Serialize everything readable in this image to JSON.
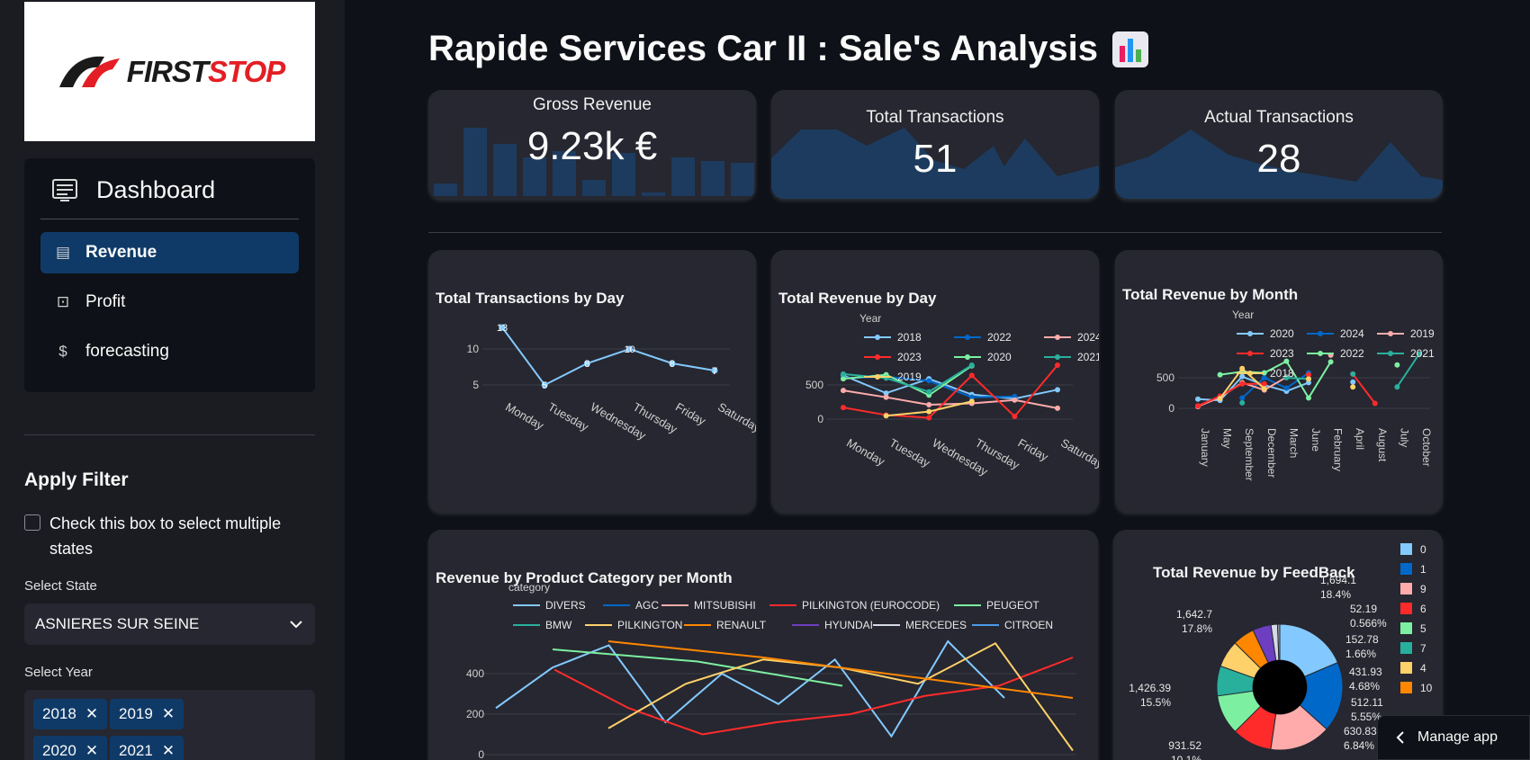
{
  "app": {
    "title": "Rapide Services Car II : Sale's Analysis"
  },
  "logo": {
    "text_first": "FIRST",
    "text_stop": "STOP"
  },
  "nav": {
    "title": "Dashboard",
    "items": [
      {
        "label": "Revenue",
        "icon": "receipt-icon",
        "active": true
      },
      {
        "label": "Profit",
        "icon": "wallet-icon",
        "active": false
      },
      {
        "label": "forecasting",
        "icon": "dollar-icon",
        "active": false
      }
    ]
  },
  "filter": {
    "title": "Apply Filter",
    "checkbox_label": "Check this box to select multiple states",
    "state_label": "Select State",
    "state_value": "ASNIERES SUR SEINE",
    "year_label": "Select Year",
    "years": [
      "2018",
      "2019",
      "2020",
      "2021"
    ]
  },
  "kpis": [
    {
      "label": "Gross Revenue",
      "value": "9.23k €",
      "spark": "bar"
    },
    {
      "label": "Total Transactions",
      "value": "51",
      "spark": "area"
    },
    {
      "label": "Actual Transactions",
      "value": "28",
      "spark": "area"
    }
  ],
  "manage_app": "Manage app",
  "colors": {
    "accent": "#0f3a68",
    "card": "#262730",
    "background": "#0e1117"
  },
  "chart_data": [
    {
      "type": "line",
      "title": "Total Transactions by Day",
      "categories": [
        "Monday",
        "Tuesday",
        "Wednesday",
        "Thursday",
        "Friday",
        "Saturday"
      ],
      "values": [
        13,
        5,
        8,
        10,
        8,
        7
      ],
      "yticks": [
        5,
        10
      ],
      "color": "#83c9ff"
    },
    {
      "type": "line",
      "title": "Total Revenue by Day",
      "legend_title": "Year",
      "categories": [
        "Monday",
        "Tuesday",
        "Wednesday",
        "Thursday",
        "Friday",
        "Saturday"
      ],
      "yticks": [
        0,
        500
      ],
      "series": [
        {
          "name": "2018",
          "color": "#83c9ff",
          "values": [
            640,
            380,
            590,
            360,
            300,
            430
          ]
        },
        {
          "name": "2022",
          "color": "#0068c9",
          "values": [
            600,
            620,
            560,
            320,
            330,
            null
          ]
        },
        {
          "name": "2024",
          "color": "#ffabab",
          "values": [
            420,
            320,
            210,
            230,
            280,
            160
          ]
        },
        {
          "name": "2023",
          "color": "#ff2b2b",
          "values": [
            170,
            60,
            20,
            640,
            40,
            790
          ]
        },
        {
          "name": "2020",
          "color": "#7defa1",
          "values": [
            590,
            650,
            350,
            780,
            null,
            null
          ]
        },
        {
          "name": "2021",
          "color": "#29b09d",
          "values": [
            660,
            600,
            400,
            790,
            null,
            null
          ]
        },
        {
          "name": "2019",
          "color": "#ffd16a",
          "values": [
            null,
            50,
            110,
            260,
            null,
            null
          ]
        }
      ]
    },
    {
      "type": "line",
      "title": "Total Revenue by Month",
      "legend_title": "Year",
      "categories": [
        "January",
        "May",
        "September",
        "December",
        "March",
        "June",
        "February",
        "April",
        "August",
        "July",
        "October"
      ],
      "yticks": [
        0,
        500
      ],
      "series": [
        {
          "name": "2020",
          "color": "#83c9ff",
          "values": [
            150,
            130,
            520,
            380,
            280,
            420,
            null,
            430,
            null,
            null,
            null
          ]
        },
        {
          "name": "2024",
          "color": "#0068c9",
          "values": [
            null,
            null,
            170,
            500,
            330,
            580,
            null,
            null,
            null,
            null,
            null
          ]
        },
        {
          "name": "2019",
          "color": "#ffabab",
          "values": [
            30,
            180,
            420,
            300,
            510,
            null,
            870,
            null,
            null,
            null,
            null
          ]
        },
        {
          "name": "2023",
          "color": "#ff2b2b",
          "values": [
            40,
            200,
            400,
            400,
            null,
            550,
            null,
            560,
            80,
            null,
            null
          ]
        },
        {
          "name": "2022",
          "color": "#7defa1",
          "values": [
            null,
            550,
            600,
            580,
            770,
            170,
            760,
            null,
            null,
            710,
            null
          ]
        },
        {
          "name": "2021",
          "color": "#29b09d",
          "values": [
            null,
            null,
            90,
            null,
            500,
            480,
            null,
            560,
            null,
            350,
            890
          ]
        },
        {
          "name": "2018",
          "color": "#ffd16a",
          "values": [
            null,
            160,
            650,
            320,
            null,
            480,
            null,
            350,
            null,
            null,
            null
          ]
        }
      ]
    },
    {
      "type": "line",
      "title": "Revenue by Product Category per Month",
      "legend_title": "category",
      "yticks": [
        0,
        200,
        400
      ],
      "series": [
        {
          "name": "DIVERS",
          "color": "#83c9ff",
          "values": [
            230,
            430,
            540,
            160,
            400,
            250,
            470,
            90,
            560,
            280
          ]
        },
        {
          "name": "AGC",
          "color": "#0068c9",
          "values": []
        },
        {
          "name": "MITSUBISHI",
          "color": "#ffabab",
          "values": []
        },
        {
          "name": "PILKINGTON (EUROCODE)",
          "color": "#ff2b2b",
          "values": [
            420,
            230,
            100,
            160,
            200,
            290,
            340,
            480
          ]
        },
        {
          "name": "PEUGEOT",
          "color": "#7defa1",
          "values": [
            520,
            460,
            340
          ]
        },
        {
          "name": "BMW",
          "color": "#29b09d",
          "values": []
        },
        {
          "name": "PILKINGTON",
          "color": "#ffd16a",
          "values": [
            130,
            350,
            470,
            430,
            350,
            550,
            20
          ]
        },
        {
          "name": "RENAULT",
          "color": "#ff8700",
          "values": [
            560,
            480,
            380,
            280
          ]
        },
        {
          "name": "HYUNDAI",
          "color": "#6d3fc0",
          "values": []
        },
        {
          "name": "MERCEDES",
          "color": "#d5dae5",
          "values": []
        },
        {
          "name": "CITROEN",
          "color": "#4c9be8",
          "values": []
        }
      ]
    },
    {
      "type": "pie",
      "title": "Total Revenue by FeedBack",
      "slices": [
        {
          "label": "0",
          "value": 1694.1,
          "pct": "18.4%",
          "color": "#83c9ff"
        },
        {
          "label": "1",
          "value": 1642.7,
          "pct": "17.8%",
          "color": "#0068c9"
        },
        {
          "label": "9",
          "value": 1426.39,
          "pct": "15.5%",
          "color": "#ffabab"
        },
        {
          "label": "6",
          "value": 931.52,
          "pct": "10.1%",
          "color": "#ff2b2b"
        },
        {
          "label": "5",
          "value": 930,
          "pct": "",
          "color": "#7defa1"
        },
        {
          "label": "7",
          "value": 700,
          "pct": "",
          "color": "#29b09d"
        },
        {
          "label": "4",
          "value": 630.83,
          "pct": "6.84%",
          "color": "#ffd16a"
        },
        {
          "label": "10",
          "value": 512.11,
          "pct": "5.55%",
          "color": "#ff8700"
        },
        {
          "label": "",
          "value": 431.93,
          "pct": "4.68%",
          "color": "#6d3fc0"
        },
        {
          "label": "",
          "value": 152.78,
          "pct": "1.66%",
          "color": "#d5dae5"
        },
        {
          "label": "",
          "value": 52.19,
          "pct": "0.566%",
          "color": "#9ca3af"
        }
      ],
      "annotations": [
        {
          "value": "1,694.1",
          "pct": "18.4%"
        },
        {
          "value": "1,642.7",
          "pct": "17.8%"
        },
        {
          "value": "52.19",
          "pct": "0.566%"
        },
        {
          "value": "152.78",
          "pct": "1.66%"
        },
        {
          "value": "431.93",
          "pct": "4.68%"
        },
        {
          "value": "1,426.39",
          "pct": "15.5%"
        },
        {
          "value": "512.11",
          "pct": "5.55%"
        },
        {
          "value": "931.52",
          "pct": "10.1%"
        },
        {
          "value": "630.83",
          "pct": "6.84%"
        }
      ],
      "legend": [
        "0",
        "1",
        "9",
        "6",
        "5",
        "7",
        "4",
        "10"
      ]
    }
  ]
}
